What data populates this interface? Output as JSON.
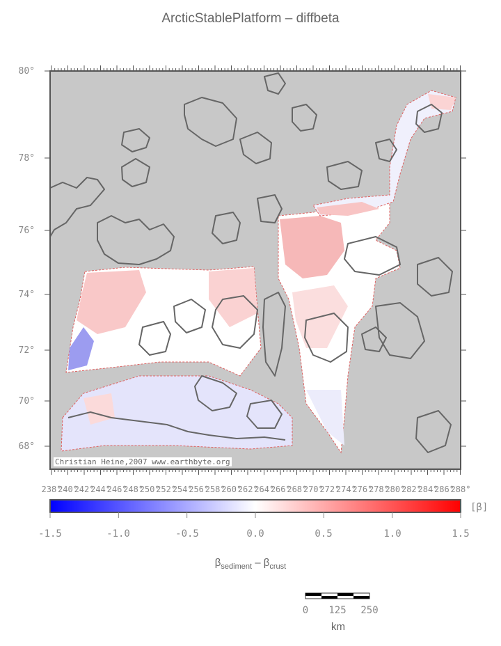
{
  "title": "ArcticStablePlatform – diffbeta",
  "latitude_labels": [
    "80°",
    "78°",
    "76°",
    "74°",
    "72°",
    "70°",
    "68°"
  ],
  "longitude_labels": [
    "238°",
    "240°",
    "242°",
    "244°",
    "246°",
    "248°",
    "250°",
    "252°",
    "254°",
    "256°",
    "258°",
    "260°",
    "262°",
    "264°",
    "266°",
    "268°",
    "270°",
    "272°",
    "274°",
    "276°",
    "278°",
    "280°",
    "282°",
    "284°",
    "286°",
    "288°"
  ],
  "credit_text": "Christian Heine,2007  www.earthbyte.org",
  "colorbar": {
    "labels": [
      "-1.5",
      "-1.0",
      "-0.5",
      "0.0",
      "0.5",
      "1.0",
      "1.5"
    ],
    "unit": "[β]",
    "min": -1.5,
    "max": 1.5,
    "colors": {
      "low": "#0000ff",
      "mid": "#ffffff",
      "high": "#ff0000"
    }
  },
  "axis_label": {
    "beta": "β",
    "sub1": "sediment",
    "minus": " – ",
    "sub2": "crust"
  },
  "scale_bar": {
    "labels": [
      "0",
      "125",
      "250"
    ],
    "unit": "km"
  },
  "colors": {
    "land_background": "#c8c8c8",
    "coastline": "#666666",
    "outline": "#e06060"
  }
}
